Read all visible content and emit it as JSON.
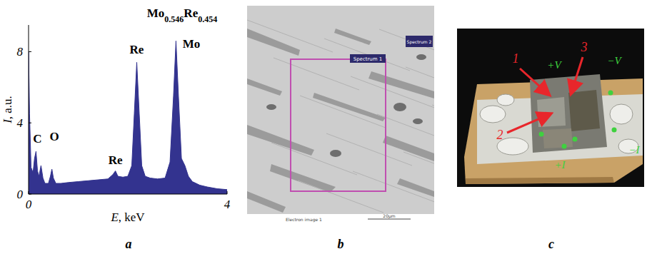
{
  "chart_data": {
    "type": "area",
    "title": "Mo0.546Re0.454",
    "x_label": "E, keV",
    "y_label": "I, a.u.",
    "x": [
      0,
      0.02,
      0.05,
      0.09,
      0.12,
      0.15,
      0.18,
      0.21,
      0.25,
      0.29,
      0.33,
      0.4,
      0.44,
      0.47,
      0.5,
      0.55,
      0.65,
      0.8,
      1.0,
      1.2,
      1.4,
      1.6,
      1.7,
      1.75,
      1.8,
      1.9,
      2.0,
      2.08,
      2.13,
      2.18,
      2.23,
      2.28,
      2.35,
      2.45,
      2.6,
      2.75,
      2.85,
      2.92,
      2.97,
      3.02,
      3.08,
      3.15,
      3.22,
      3.3,
      3.45,
      3.6,
      3.8,
      4.0
    ],
    "values": [
      8.0,
      4.5,
      1.5,
      1.2,
      2.0,
      2.4,
      1.3,
      1.0,
      1.6,
      0.9,
      0.6,
      0.6,
      1.0,
      1.4,
      0.9,
      0.6,
      0.6,
      0.65,
      0.7,
      0.75,
      0.8,
      0.85,
      1.1,
      1.3,
      1.0,
      0.95,
      1.0,
      1.6,
      4.5,
      7.4,
      4.5,
      1.6,
      1.0,
      0.9,
      0.85,
      0.9,
      1.8,
      5.5,
      8.6,
      5.5,
      2.0,
      1.6,
      1.0,
      0.7,
      0.5,
      0.4,
      0.3,
      0.25
    ],
    "color": "#33338f",
    "xlim": [
      0,
      4
    ],
    "xticks": [
      0,
      4
    ],
    "ylim": [
      0,
      9.5
    ],
    "yticks": [
      0,
      4,
      8
    ],
    "annotations": [
      {
        "text": "C",
        "x": 0.18,
        "y": 2.9
      },
      {
        "text": "O",
        "x": 0.52,
        "y": 3.0
      },
      {
        "text": "Re",
        "x": 1.75,
        "y": 1.7
      },
      {
        "text": "Re",
        "x": 2.18,
        "y": 7.9
      },
      {
        "text": "Mo",
        "x": 3.28,
        "y": 8.2
      }
    ]
  },
  "panel_labels": [
    "a",
    "b",
    "c"
  ],
  "sem_image": {
    "spectrum_1": "Spectrum 1",
    "spectrum_2": "Spectrum 2",
    "image_name": "Electron image 1",
    "scale_bar": "20µm"
  },
  "sample_photo": {
    "arrows": [
      "1",
      "2",
      "3"
    ],
    "contacts": [
      "+V",
      "−V",
      "+I",
      "−I"
    ]
  }
}
